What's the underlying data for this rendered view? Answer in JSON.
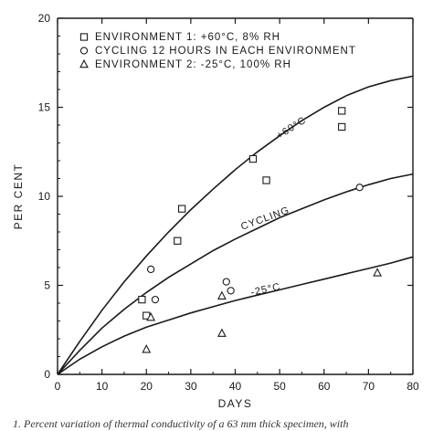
{
  "chart_data": {
    "type": "scatter",
    "xlabel": "DAYS",
    "ylabel": "PER CENT",
    "xlim": [
      0,
      80
    ],
    "ylim": [
      0,
      20
    ],
    "xticks": [
      0,
      10,
      20,
      30,
      40,
      50,
      60,
      70,
      80
    ],
    "yticks": [
      0,
      5,
      10,
      15,
      20
    ],
    "grid": false,
    "legend_position": "top-left",
    "series": [
      {
        "name": "ENVIRONMENT 1: +60°C, 8% RH",
        "marker": "square",
        "points": [
          [
            19,
            4.2
          ],
          [
            20,
            3.3
          ],
          [
            27,
            7.5
          ],
          [
            28,
            9.3
          ],
          [
            44,
            12.1
          ],
          [
            47,
            10.9
          ],
          [
            64,
            14.8
          ],
          [
            64,
            13.9
          ]
        ]
      },
      {
        "name": "CYCLING 12 HOURS IN EACH ENVIRONMENT",
        "marker": "circle",
        "points": [
          [
            21,
            5.9
          ],
          [
            22,
            4.2
          ],
          [
            38,
            5.2
          ],
          [
            39,
            4.7
          ],
          [
            68,
            10.5
          ]
        ]
      },
      {
        "name": "ENVIRONMENT 2: -25°C, 100% RH",
        "marker": "triangle",
        "points": [
          [
            20,
            1.4
          ],
          [
            21,
            3.2
          ],
          [
            37,
            4.4
          ],
          [
            37,
            2.3
          ],
          [
            72,
            5.7
          ]
        ]
      }
    ],
    "curves": [
      {
        "label": "+60°C",
        "points": [
          [
            0,
            0
          ],
          [
            5,
            1.85
          ],
          [
            10,
            3.6
          ],
          [
            15,
            5.2
          ],
          [
            20,
            6.65
          ],
          [
            25,
            8.0
          ],
          [
            30,
            9.25
          ],
          [
            35,
            10.4
          ],
          [
            40,
            11.5
          ],
          [
            45,
            12.5
          ],
          [
            50,
            13.4
          ],
          [
            55,
            14.25
          ],
          [
            60,
            15.0
          ],
          [
            65,
            15.65
          ],
          [
            70,
            16.15
          ],
          [
            75,
            16.5
          ],
          [
            80,
            16.75
          ]
        ]
      },
      {
        "label": "CYCLING",
        "points": [
          [
            0,
            0
          ],
          [
            5,
            1.35
          ],
          [
            10,
            2.6
          ],
          [
            15,
            3.65
          ],
          [
            20,
            4.6
          ],
          [
            25,
            5.45
          ],
          [
            30,
            6.2
          ],
          [
            35,
            6.95
          ],
          [
            40,
            7.6
          ],
          [
            45,
            8.2
          ],
          [
            50,
            8.8
          ],
          [
            55,
            9.3
          ],
          [
            60,
            9.8
          ],
          [
            65,
            10.25
          ],
          [
            70,
            10.65
          ],
          [
            75,
            11.0
          ],
          [
            80,
            11.25
          ]
        ]
      },
      {
        "label": "-25°C",
        "points": [
          [
            0,
            0
          ],
          [
            5,
            0.85
          ],
          [
            10,
            1.55
          ],
          [
            15,
            2.15
          ],
          [
            20,
            2.65
          ],
          [
            25,
            3.05
          ],
          [
            30,
            3.45
          ],
          [
            35,
            3.8
          ],
          [
            40,
            4.15
          ],
          [
            45,
            4.45
          ],
          [
            50,
            4.75
          ],
          [
            55,
            5.05
          ],
          [
            60,
            5.35
          ],
          [
            65,
            5.65
          ],
          [
            70,
            5.95
          ],
          [
            75,
            6.25
          ],
          [
            80,
            6.6
          ]
        ]
      }
    ]
  },
  "caption": "1.  Percent variation of thermal conductivity of a 63 mm thick specimen, with"
}
